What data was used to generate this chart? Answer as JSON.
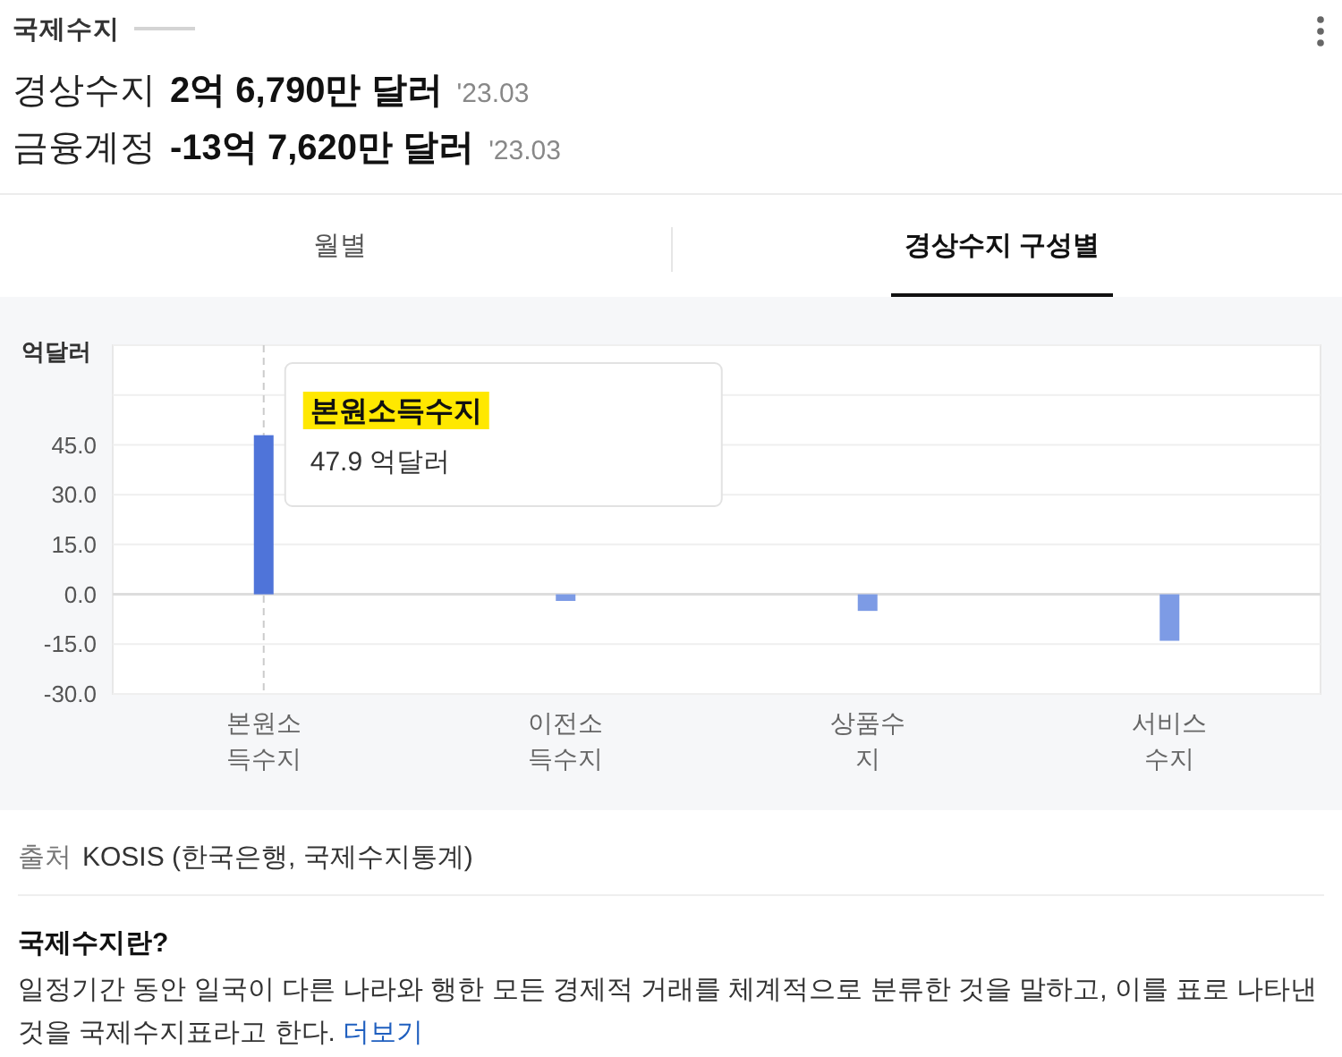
{
  "chart_data": {
    "type": "bar",
    "title": "국제수지",
    "ylabel": "억달러",
    "annotations": [
      "경상수지",
      "2억 6,790만 달러",
      "'23.03",
      "금융계정",
      "-13억 7,620만 달러",
      "'23.03",
      "월별",
      "경상수지 구성별",
      "출처",
      "KOSIS (한국은행, 국제수지통계)",
      "국제수지란?",
      "일정기간 동안 일국이 다른 나라와 행한 모든 경제적 거래를 체계적으로 분류한 것을 말하고, 이를 표로 나타낸 것을 국제수지표라고 한다. 더보기",
      "본원소득수지",
      "47.9 억달러"
    ],
    "categories": [
      "본원소득수지",
      "이전소득수지",
      "상품수지",
      "서비스수지"
    ],
    "values": [
      47.9,
      -2,
      -5,
      -14
    ],
    "colors": [
      "#4f74d9",
      "#7d9be5",
      "#7d9be5",
      "#7d9be5"
    ],
    "ref_lines": [
      {
        "axis": "x",
        "value": "본원소득수지",
        "color": "#cccccc",
        "line_style": "dashed"
      }
    ],
    "ylim": [
      -30,
      75
    ],
    "yticks": [
      {
        "value": -30,
        "label": "-30.0"
      },
      {
        "value": -15,
        "label": "-15.0"
      },
      {
        "value": 0,
        "label": "0.0"
      },
      {
        "value": 15,
        "label": "15.0"
      },
      {
        "value": 30,
        "label": "30.0"
      },
      {
        "value": 45,
        "label": "45.0"
      },
      {
        "value": 60,
        "label": null
      },
      {
        "value": 75,
        "label": null
      }
    ],
    "grid": "y"
  }
}
